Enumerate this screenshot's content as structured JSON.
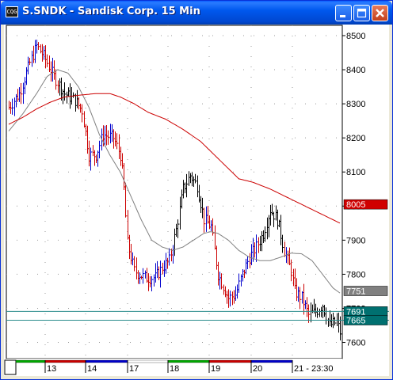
{
  "window": {
    "title": "S.SNDK - Sandisk Corp. 15 Min",
    "icon_text": "CQG",
    "buttons": [
      "minimize",
      "maximize",
      "close"
    ]
  },
  "colors": {
    "titlebar": "#0054e3",
    "bar_up": "#0000cc",
    "bar_down": "#cc0000",
    "bar_neutral": "#000000",
    "ma_fast": "#808080",
    "ma_slow": "#cc0000",
    "line_teal": "#2a8c8c",
    "tag_ma_slow": "#d00000",
    "tag_ma_fast": "#808080",
    "tag_teal": "#007070"
  },
  "chart_data": {
    "type": "candlestick-ohlc",
    "y_ticks": [
      "8500",
      "8400",
      "8300",
      "8200",
      "8100",
      "8000",
      "7900",
      "7800",
      "7700",
      "7600"
    ],
    "ylim": [
      7530,
      8520
    ],
    "x_labels": [
      "13",
      "14",
      "17",
      "18",
      "19",
      "20",
      "21 - 23:30"
    ],
    "session_colors": [
      "#00aa00",
      "#cc0000",
      "#0000cc",
      "#ffffff",
      "#00aa00",
      "#cc0000",
      "#0000cc"
    ],
    "price_tags": [
      {
        "label": "8005",
        "value": 8005,
        "kind": "ma_slow"
      },
      {
        "label": "7751",
        "value": 7751,
        "kind": "ma_fast"
      },
      {
        "label": "7691",
        "value": 7691,
        "kind": "teal"
      },
      {
        "label": "7665",
        "value": 7665,
        "kind": "teal"
      }
    ],
    "extra_tick": "7700",
    "horizontal_lines": [
      7691,
      7665
    ],
    "anchors": [
      [
        0,
        8290
      ],
      [
        6,
        8330
      ],
      [
        12,
        8420
      ],
      [
        16,
        8470
      ],
      [
        20,
        8440
      ],
      [
        26,
        8380
      ],
      [
        32,
        8330
      ],
      [
        38,
        8310
      ],
      [
        42,
        8280
      ],
      [
        46,
        8150
      ],
      [
        50,
        8150
      ],
      [
        54,
        8210
      ],
      [
        60,
        8200
      ],
      [
        64,
        8150
      ],
      [
        66,
        8050
      ],
      [
        68,
        7890
      ],
      [
        72,
        7810
      ],
      [
        78,
        7790
      ],
      [
        84,
        7790
      ],
      [
        88,
        7820
      ],
      [
        92,
        7840
      ],
      [
        96,
        7930
      ],
      [
        100,
        8050
      ],
      [
        104,
        8090
      ],
      [
        108,
        8060
      ],
      [
        112,
        7960
      ],
      [
        116,
        7940
      ],
      [
        120,
        7800
      ],
      [
        126,
        7730
      ],
      [
        130,
        7740
      ],
      [
        134,
        7800
      ],
      [
        138,
        7850
      ],
      [
        142,
        7880
      ],
      [
        146,
        7920
      ],
      [
        150,
        7990
      ],
      [
        154,
        7960
      ],
      [
        158,
        7870
      ],
      [
        162,
        7810
      ],
      [
        164,
        7750
      ],
      [
        168,
        7730
      ],
      [
        172,
        7680
      ],
      [
        176,
        7690
      ],
      [
        180,
        7710
      ],
      [
        184,
        7650
      ],
      [
        188,
        7660
      ],
      [
        190,
        7630
      ]
    ],
    "ma_fast": [
      [
        0,
        8220
      ],
      [
        8,
        8270
      ],
      [
        16,
        8330
      ],
      [
        22,
        8380
      ],
      [
        28,
        8400
      ],
      [
        34,
        8390
      ],
      [
        40,
        8350
      ],
      [
        46,
        8290
      ],
      [
        52,
        8210
      ],
      [
        58,
        8150
      ],
      [
        64,
        8100
      ],
      [
        70,
        8030
      ],
      [
        76,
        7960
      ],
      [
        82,
        7900
      ],
      [
        88,
        7880
      ],
      [
        94,
        7870
      ],
      [
        100,
        7880
      ],
      [
        106,
        7900
      ],
      [
        112,
        7920
      ],
      [
        116,
        7925
      ],
      [
        120,
        7920
      ],
      [
        126,
        7900
      ],
      [
        132,
        7870
      ],
      [
        138,
        7850
      ],
      [
        144,
        7840
      ],
      [
        150,
        7840
      ],
      [
        156,
        7850
      ],
      [
        162,
        7862
      ],
      [
        168,
        7860
      ],
      [
        174,
        7840
      ],
      [
        180,
        7800
      ],
      [
        186,
        7760
      ],
      [
        190,
        7745
      ]
    ],
    "ma_slow": [
      [
        0,
        8240
      ],
      [
        8,
        8260
      ],
      [
        16,
        8285
      ],
      [
        24,
        8305
      ],
      [
        32,
        8320
      ],
      [
        40,
        8325
      ],
      [
        50,
        8330
      ],
      [
        58,
        8330
      ],
      [
        64,
        8320
      ],
      [
        72,
        8300
      ],
      [
        80,
        8275
      ],
      [
        90,
        8255
      ],
      [
        100,
        8225
      ],
      [
        110,
        8190
      ],
      [
        118,
        8150
      ],
      [
        126,
        8110
      ],
      [
        132,
        8080
      ],
      [
        140,
        8070
      ],
      [
        150,
        8050
      ],
      [
        158,
        8030
      ],
      [
        166,
        8010
      ],
      [
        174,
        7990
      ],
      [
        182,
        7970
      ],
      [
        190,
        7950
      ]
    ]
  }
}
